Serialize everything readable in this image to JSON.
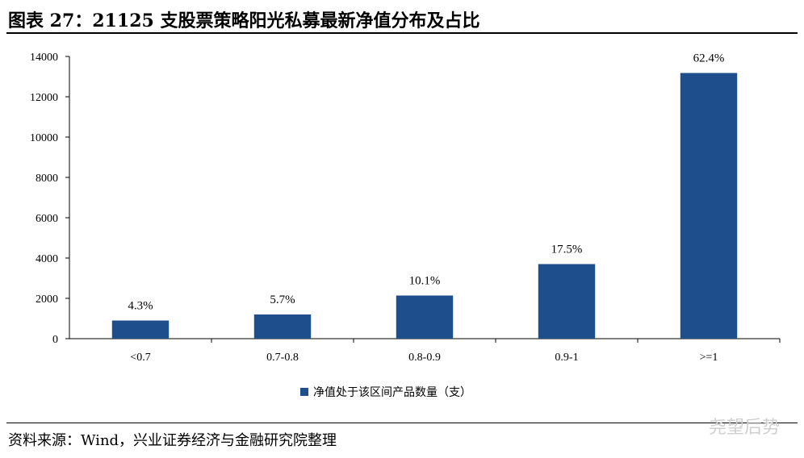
{
  "header": {
    "title": "图表 27：21125 支股票策略阳光私募最新净值分布及占比"
  },
  "footer": {
    "source": "资料来源：Wind，兴业证券经济与金融研究院整理"
  },
  "watermark": {
    "text": "尧望后势"
  },
  "chart_data": {
    "type": "bar",
    "categories": [
      "<0.7",
      "0.7-0.8",
      "0.8-0.9",
      "0.9-1",
      ">=1"
    ],
    "series": [
      {
        "name": "净值处于该区间产品数量（支）",
        "values": [
          900,
          1200,
          2140,
          3700,
          13180
        ],
        "color": "#1f4e8c"
      }
    ],
    "data_labels": [
      "4.3%",
      "5.7%",
      "10.1%",
      "17.5%",
      "62.4%"
    ],
    "ylim": [
      0,
      14000
    ],
    "yticks": [
      0,
      2000,
      4000,
      6000,
      8000,
      10000,
      12000,
      14000
    ],
    "xlabel": "",
    "ylabel": "",
    "grid": false,
    "legend_position": "bottom"
  }
}
